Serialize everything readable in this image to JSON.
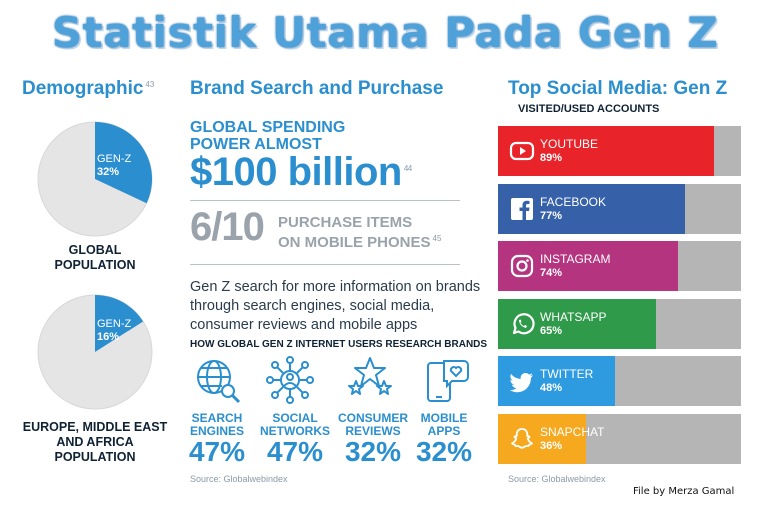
{
  "title": "Statistik Utama Pada Gen Z",
  "demographic": {
    "heading": "Demographic",
    "ref": "43",
    "charts": [
      {
        "label": "GEN-Z",
        "pct_text": "32%",
        "value": 32,
        "caption_lines": [
          "GLOBAL",
          "POPULATION"
        ]
      },
      {
        "label": "GEN-Z",
        "pct_text": "16%",
        "value": 16,
        "caption_lines": [
          "EUROPE, MIDDLE EAST",
          "AND AFRICA",
          "POPULATION"
        ]
      }
    ]
  },
  "brand": {
    "heading": "Brand Search and Purchase",
    "spending_lines": [
      "GLOBAL SPENDING",
      "POWER ALMOST"
    ],
    "amount": "$100 billion",
    "amount_ref": "44",
    "fraction": "6/10",
    "purchase_lines": [
      "PURCHASE ITEMS",
      "ON MOBILE PHONES"
    ],
    "purchase_ref": "45",
    "description": "Gen Z search for more information on brands through search engines, social media, consumer reviews and mobile apps",
    "research_heading": "HOW GLOBAL GEN Z INTERNET USERS RESEARCH BRANDS",
    "methods": [
      {
        "icon": "globe-search-icon",
        "lines": [
          "SEARCH",
          "ENGINES"
        ],
        "pct": "47%"
      },
      {
        "icon": "social-network-icon",
        "lines": [
          "SOCIAL",
          "NETWORKS"
        ],
        "pct": "47%"
      },
      {
        "icon": "stars-icon",
        "lines": [
          "CONSUMER",
          "REVIEWS"
        ],
        "pct": "32%"
      },
      {
        "icon": "mobile-heart-icon",
        "lines": [
          "MOBILE",
          "APPS"
        ],
        "pct": "32%"
      }
    ],
    "source": "Source: Globalwebindex"
  },
  "social": {
    "heading": "Top Social Media: Gen Z",
    "subheading": "VISITED/USED ACCOUNTS",
    "platforms": [
      {
        "name": "YOUTUBE",
        "pct": "89%",
        "value": 89,
        "color": "#e8232a",
        "icon": "youtube-icon"
      },
      {
        "name": "FACEBOOK",
        "pct": "77%",
        "value": 77,
        "color": "#3661a8",
        "icon": "facebook-icon"
      },
      {
        "name": "INSTAGRAM",
        "pct": "74%",
        "value": 74,
        "color": "#b5347f",
        "icon": "instagram-icon"
      },
      {
        "name": "WHATSAPP",
        "pct": "65%",
        "value": 65,
        "color": "#2f9a4a",
        "icon": "whatsapp-icon"
      },
      {
        "name": "TWITTER",
        "pct": "48%",
        "value": 48,
        "color": "#2e9be0",
        "icon": "twitter-icon"
      },
      {
        "name": "SNAPCHAT",
        "pct": "36%",
        "value": 36,
        "color": "#f6a81f",
        "icon": "snapchat-icon"
      }
    ],
    "source": "Source: Globalwebindex"
  },
  "credit": "File by Merza Gamal",
  "colors": {
    "accent": "#2b8fcf",
    "pie_bg": "#e5e5e5",
    "track": "#b5b5b5",
    "muted": "#9aa3ab"
  }
}
